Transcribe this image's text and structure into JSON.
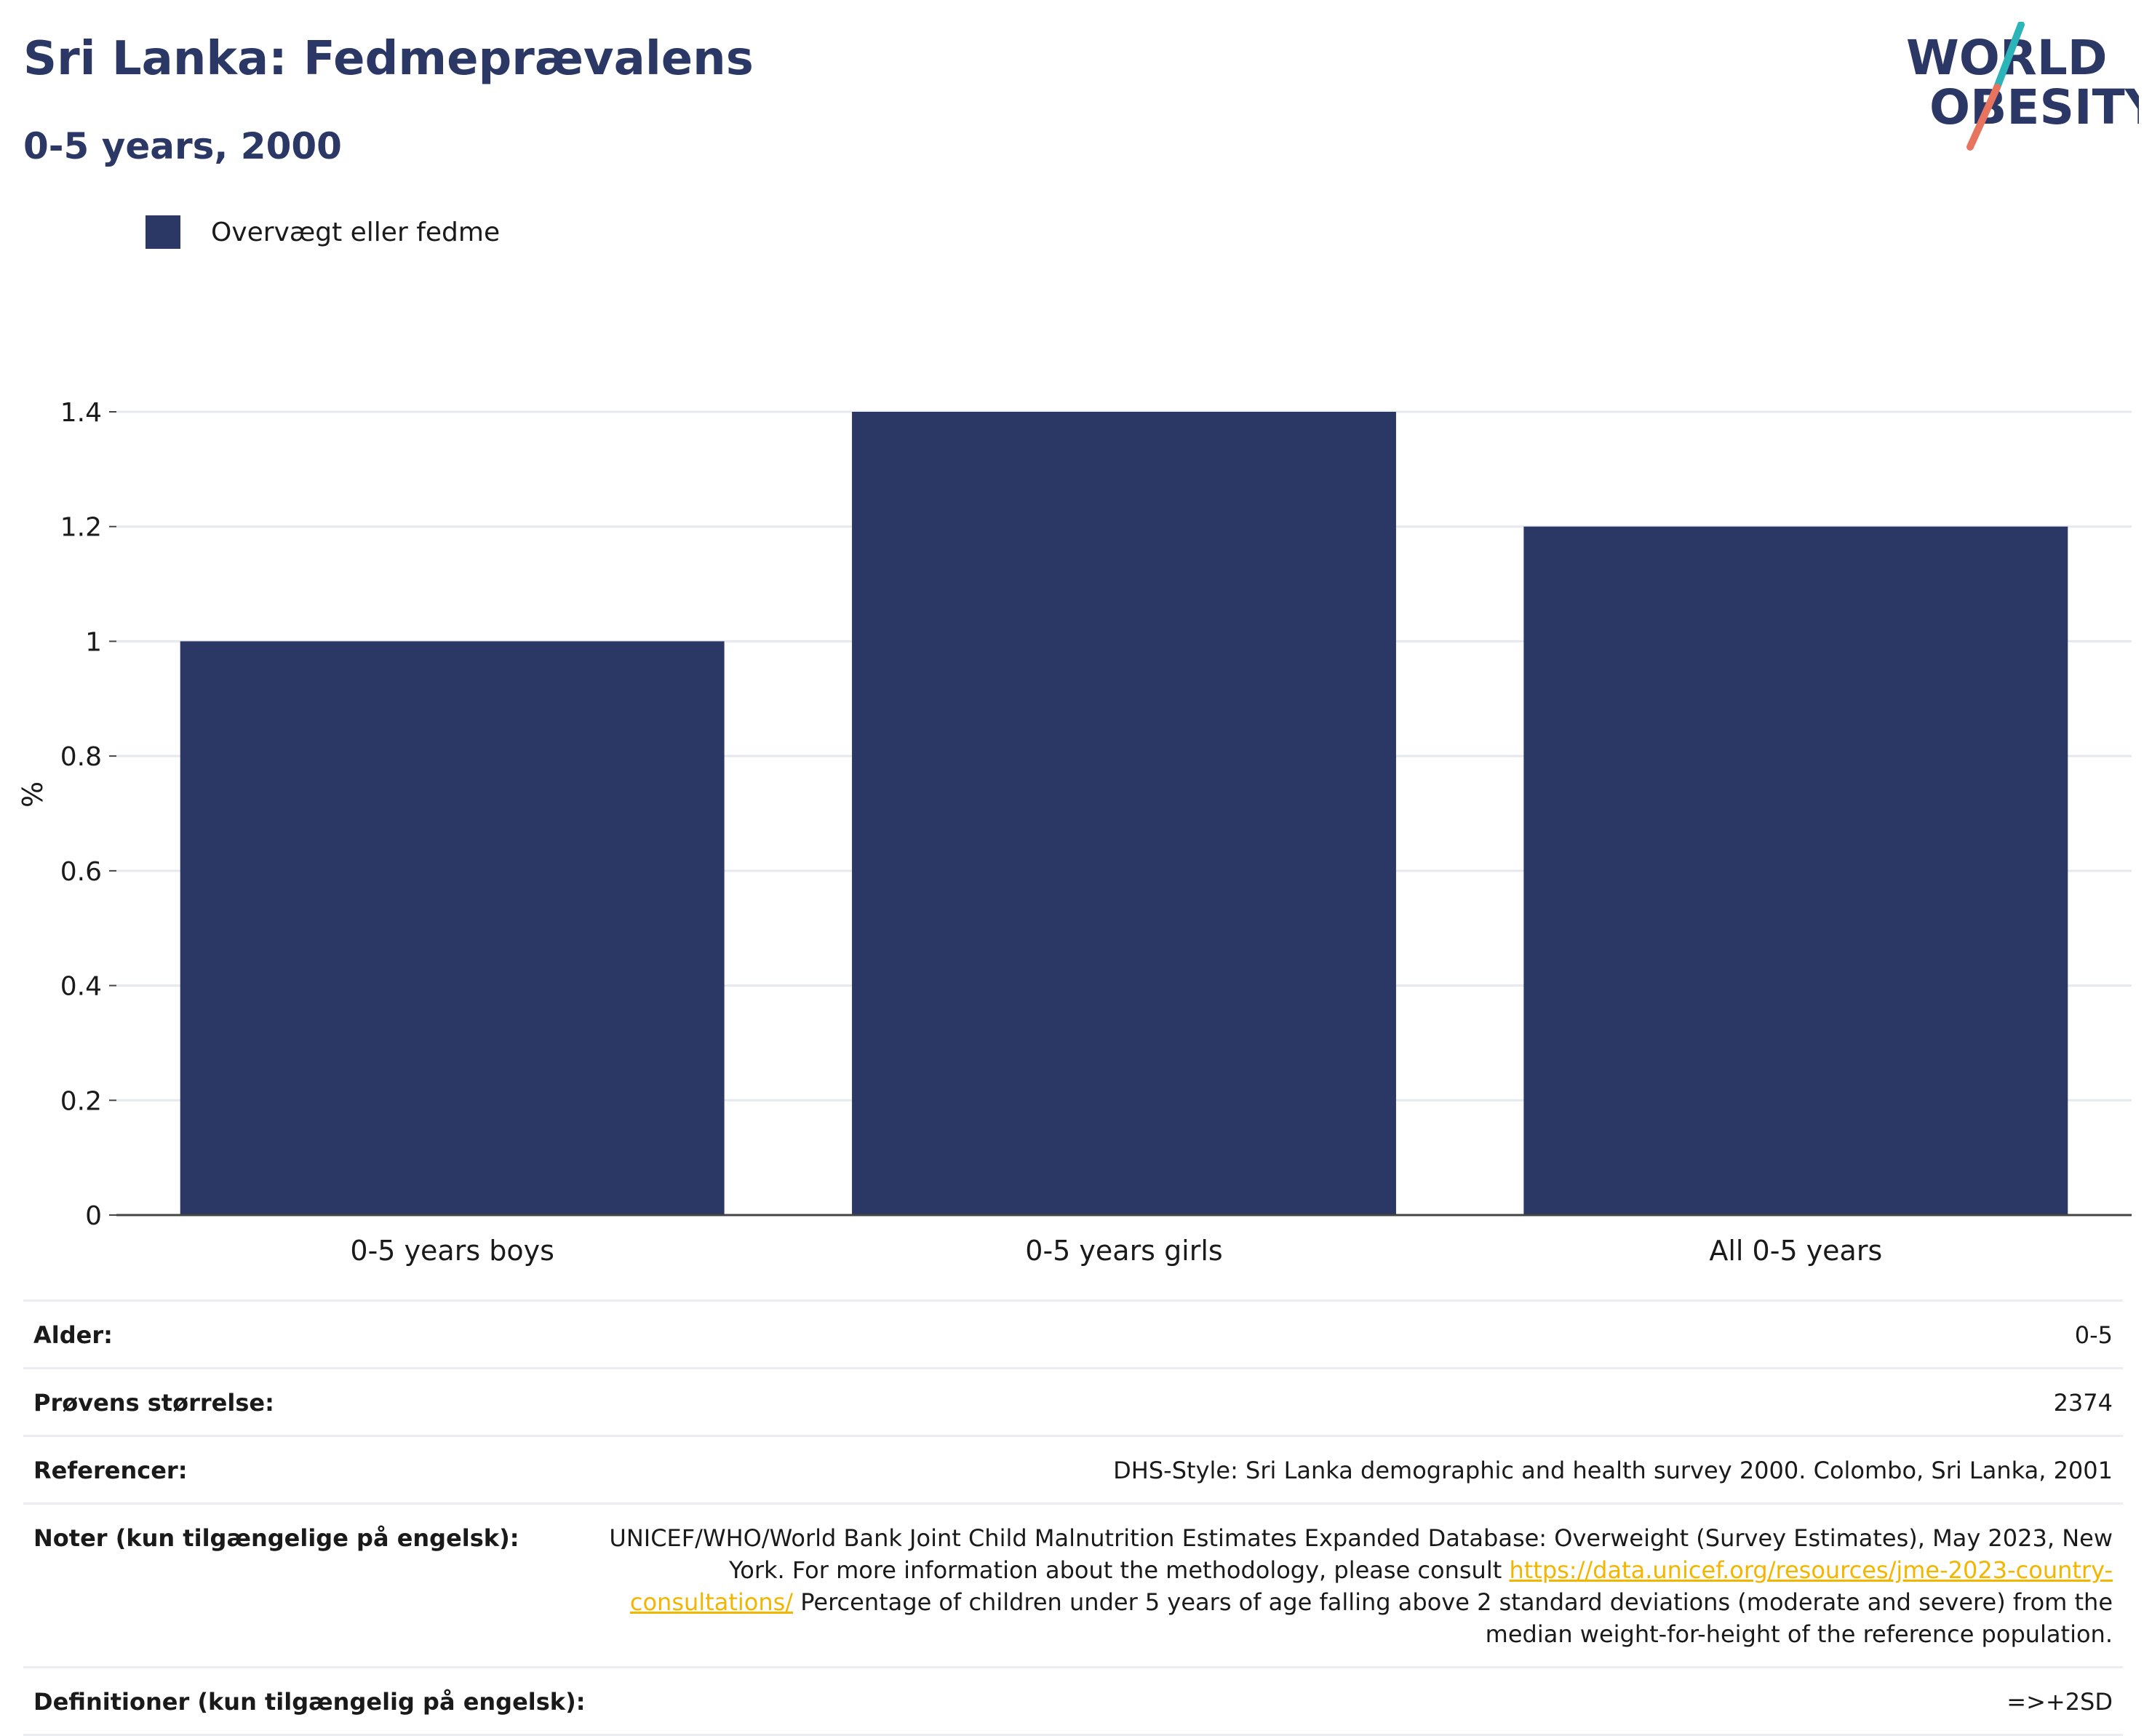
{
  "header": {
    "title": "Sri Lanka: Fedmeprævalens",
    "subtitle": "0-5 years, 2000"
  },
  "logo": {
    "line1": "WORLD",
    "line2": "OBESITY"
  },
  "colors": {
    "bar": "#2b3764",
    "accent_teal": "#2bb5b8",
    "accent_coral": "#e8735f",
    "link": "#f2b600"
  },
  "chart_data": {
    "type": "bar",
    "categories": [
      "0-5 years boys",
      "0-5 years girls",
      "All 0-5 years"
    ],
    "series": [
      {
        "name": "Overvægt eller fedme",
        "values": [
          1.0,
          1.4,
          1.2
        ]
      }
    ],
    "ylabel": "%",
    "ylim": [
      0,
      1.4
    ],
    "yticks": [
      0,
      0.2,
      0.4,
      0.6,
      0.8,
      1,
      1.2,
      1.4
    ],
    "ytick_labels": [
      "0",
      "0.2",
      "0.4",
      "0.6",
      "0.8",
      "1",
      "1.2",
      "1.4"
    ],
    "grid": true,
    "legend_position": "top-left"
  },
  "info": {
    "age_label": "Alder:",
    "age_value": "0-5",
    "sample_label": "Prøvens størrelse:",
    "sample_value": "2374",
    "refs_label": "Referencer:",
    "refs_value": "DHS-Style: Sri Lanka demographic and health survey 2000. Colombo, Sri Lanka, 2001",
    "notes_label": "Noter (kun tilgængelige på engelsk):",
    "notes_text1": "UNICEF/WHO/World Bank Joint Child Malnutrition Estimates Expanded Database: Overweight (Survey Estimates), May 2023, New York. For more information about the methodology, please consult ",
    "notes_link": "https://data.unicef.org/resources/jme-2023-country-consultations/",
    "notes_text2": " Percentage of children under 5 years of age falling above 2 standard deviations (moderate and severe) from the median weight-for-height of the reference population.",
    "defs_label": "Definitioner (kun tilgængelig på engelsk):",
    "defs_value": "=>+2SD"
  }
}
